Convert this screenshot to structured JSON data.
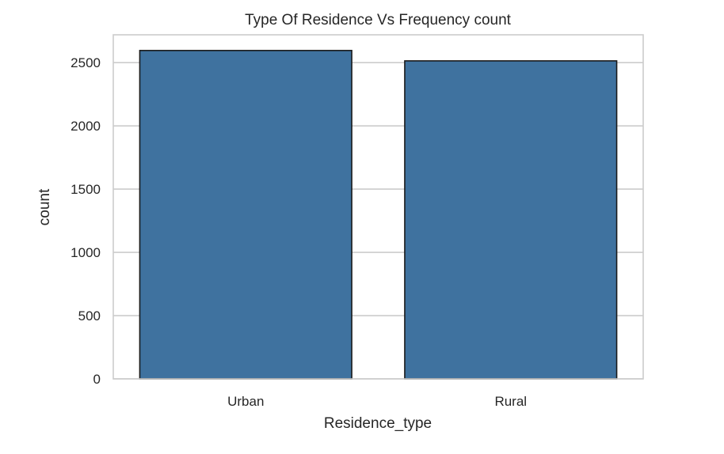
{
  "chart_data": {
    "type": "bar",
    "title": "Type Of Residence Vs Frequency count",
    "xlabel": "Residence_type",
    "ylabel": "count",
    "categories": [
      "Urban",
      "Rural"
    ],
    "values": [
      2596,
      2514
    ],
    "ylim": [
      0,
      2720
    ],
    "yticks": [
      0,
      500,
      1000,
      1500,
      2000,
      2500
    ],
    "ytick_labels": [
      "0",
      "500",
      "1000",
      "1500",
      "2000",
      "2500"
    ],
    "grid": "horizontal",
    "bar_color": "#3f729f",
    "edge_color": "#1a1a1a"
  }
}
